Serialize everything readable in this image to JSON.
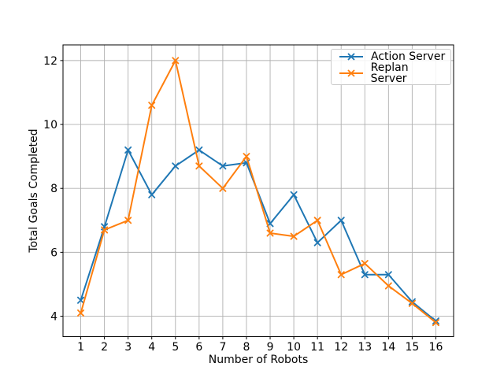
{
  "figure": {
    "background_color": "#ffffff",
    "title": ""
  },
  "chart_data": {
    "type": "line",
    "title": "",
    "xlabel": "Number of Robots",
    "ylabel": "Total Goals Completed",
    "x": [
      1,
      2,
      3,
      4,
      5,
      6,
      7,
      8,
      9,
      10,
      11,
      12,
      13,
      14,
      15,
      16
    ],
    "series": [
      {
        "name": "Action Server",
        "color": "#1f77b4",
        "marker": "x",
        "values": [
          4.5,
          6.8,
          9.2,
          7.8,
          8.7,
          9.2,
          8.7,
          8.8,
          6.9,
          7.8,
          6.3,
          7.0,
          5.3,
          5.3,
          4.45,
          3.85
        ]
      },
      {
        "name": "Replan Server",
        "color": "#ff7f0e",
        "marker": "x",
        "values": [
          4.1,
          6.7,
          7.0,
          10.6,
          12.0,
          8.7,
          8.0,
          9.0,
          6.6,
          6.5,
          7.0,
          5.3,
          5.65,
          4.95,
          4.4,
          3.8
        ]
      }
    ],
    "xticks": [
      1,
      2,
      3,
      4,
      5,
      6,
      7,
      8,
      9,
      10,
      11,
      12,
      13,
      14,
      15,
      16
    ],
    "yticks": [
      4,
      6,
      8,
      10,
      12
    ],
    "xlim": [
      0.25,
      16.75
    ],
    "ylim": [
      3.36,
      12.49
    ],
    "grid": true,
    "grid_color": "#b0b0b0",
    "axis_color": "#000000",
    "legend": {
      "position": "upper right",
      "entries": [
        "Action Server",
        "Replan Server"
      ]
    }
  }
}
